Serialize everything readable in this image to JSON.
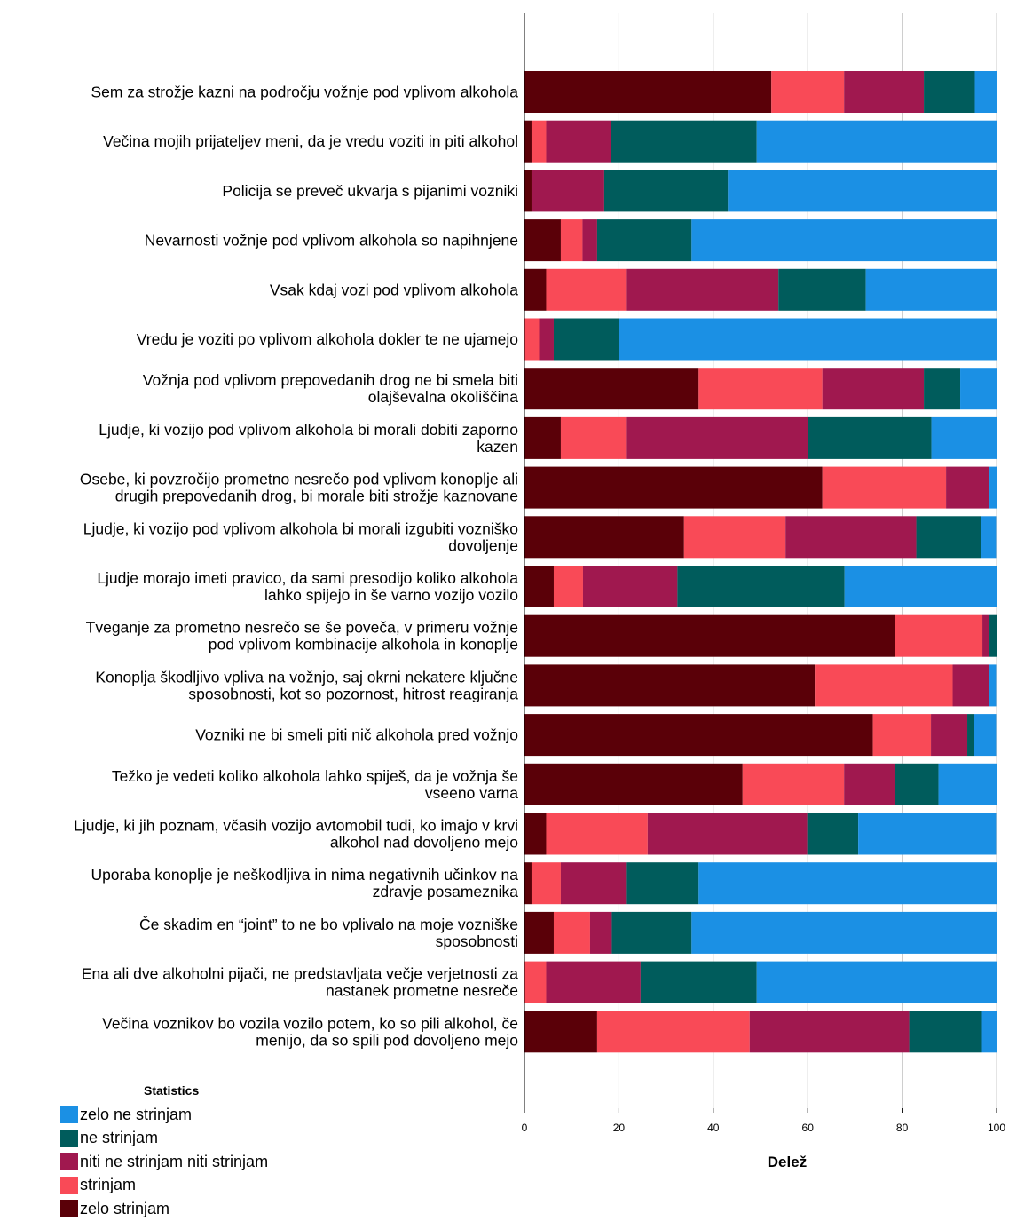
{
  "chart_data": {
    "type": "bar",
    "orientation": "horizontal",
    "stacked": true,
    "xlabel": "Delež",
    "xlim": [
      0,
      100
    ],
    "xticks": [
      0,
      20,
      40,
      60,
      80,
      100
    ],
    "grid": true,
    "legend_title": "Statistics",
    "legend_position": "bottom-left",
    "categories": [
      [
        "Sem za strožje kazni na področju vožnje pod vplivom alkohola"
      ],
      [
        "Večina mojih prijateljev meni, da je vredu voziti in piti alkohol"
      ],
      [
        "Policija se preveč ukvarja s pijanimi vozniki"
      ],
      [
        "Nevarnosti vožnje pod vplivom alkohola so napihnjene"
      ],
      [
        "Vsak kdaj vozi pod vplivom alkohola"
      ],
      [
        "Vredu je voziti po vplivom alkohola dokler te ne ujamejo"
      ],
      [
        "Vožnja pod vplivom prepovedanih drog ne bi smela biti",
        "olajševalna okoliščina"
      ],
      [
        "Ljudje, ki vozijo pod vplivom alkohola bi morali dobiti zaporno",
        "kazen"
      ],
      [
        "Osebe, ki povzročijo prometno nesrečo pod vplivom konoplje ali",
        "drugih prepovedanih drog, bi morale biti strožje kaznovane"
      ],
      [
        "Ljudje, ki vozijo pod vplivom alkohola bi morali izgubiti vozniško",
        "dovoljenje"
      ],
      [
        "Ljudje morajo imeti pravico, da sami presodijo koliko alkohola",
        "lahko spijejo in še varno vozijo vozilo"
      ],
      [
        "Tveganje za prometno nesrečo se še poveča, v primeru vožnje",
        "pod vplivom kombinacije alkohola in konoplje"
      ],
      [
        "Konoplja škodljivo vpliva na vožnjo, saj okrni nekatere ključne",
        "sposobnosti, kot so pozornost, hitrost reagiranja"
      ],
      [
        "Vozniki ne bi smeli piti nič alkohola pred vožnjo"
      ],
      [
        "Težko je vedeti koliko alkohola lahko spiješ, da je vožnja še",
        "vseeno varna"
      ],
      [
        "Ljudje, ki jih poznam, včasih vozijo avtomobil tudi, ko imajo v krvi",
        "alkohol nad dovoljeno mejo"
      ],
      [
        "Uporaba konoplje je neškodljiva in nima negativnih učinkov na",
        "zdravje posameznika"
      ],
      [
        "Če skadim en “joint” to ne bo vplivalo na moje vozniške",
        "sposobnosti"
      ],
      [
        "Ena ali dve alkoholni pijači, ne predstavljata večje verjetnosti za",
        "nastanek prometne nesreče"
      ],
      [
        "Večina voznikov bo vozila vozilo potem, ko so pili alkohol, če",
        "menijo, da so spili pod dovoljeno mejo"
      ]
    ],
    "series": [
      {
        "name": "zelo strinjam",
        "color": "#5a0008",
        "values": [
          52.3,
          1.5,
          1.5,
          7.7,
          4.6,
          0,
          36.9,
          7.7,
          63.1,
          33.8,
          6.2,
          78.5,
          61.5,
          73.8,
          46.2,
          4.6,
          1.5,
          6.2,
          0,
          15.4
        ]
      },
      {
        "name": "strinjam",
        "color": "#f94a57",
        "values": [
          15.4,
          3.1,
          0,
          4.6,
          16.9,
          3.1,
          26.2,
          13.8,
          26.2,
          21.5,
          6.2,
          18.5,
          29.2,
          12.3,
          21.5,
          21.5,
          6.2,
          7.7,
          4.6,
          32.3
        ]
      },
      {
        "name": "niti ne strinjam niti strinjam",
        "color": "#a0184f",
        "values": [
          16.9,
          13.8,
          15.4,
          3.1,
          32.3,
          3.1,
          21.5,
          38.5,
          9.2,
          27.7,
          20.0,
          1.5,
          7.7,
          7.7,
          10.8,
          33.8,
          13.8,
          4.6,
          20.0,
          33.8
        ]
      },
      {
        "name": "ne strinjam",
        "color": "#005c5c",
        "values": [
          10.8,
          30.8,
          26.2,
          20.0,
          18.5,
          13.8,
          7.7,
          26.2,
          0,
          13.8,
          35.4,
          1.5,
          0,
          1.5,
          9.2,
          10.8,
          15.4,
          16.9,
          24.6,
          15.4
        ]
      },
      {
        "name": "zelo ne strinjam",
        "color": "#1b90e4",
        "values": [
          4.6,
          50.8,
          56.9,
          64.6,
          27.7,
          80.0,
          7.7,
          13.8,
          1.5,
          3.1,
          32.3,
          0,
          1.5,
          4.6,
          12.3,
          29.2,
          63.1,
          64.6,
          50.8,
          3.1
        ]
      }
    ],
    "legend_order": [
      "zelo ne strinjam",
      "ne strinjam",
      "niti ne strinjam niti strinjam",
      "strinjam",
      "zelo strinjam"
    ]
  }
}
